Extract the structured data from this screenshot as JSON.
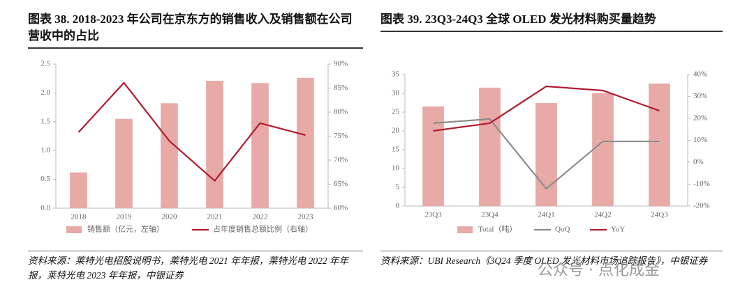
{
  "chart_data": [
    {
      "type": "combo",
      "title": "图表 38. 2018-2023 年公司在京东方的销售收入及销售额在公司营收中的占比",
      "categories": [
        "2018",
        "2019",
        "2020",
        "2021",
        "2022",
        "2023"
      ],
      "series": [
        {
          "name": "销售额（亿元，左轴）",
          "type": "bar",
          "color": "#e8aaa7",
          "values": [
            0.62,
            1.55,
            1.82,
            2.21,
            2.17,
            2.26
          ]
        },
        {
          "name": "占年度销售总额比例（右轴）",
          "type": "line",
          "axis": "y2",
          "color": "#b11a30",
          "values": [
            75.8,
            86.1,
            74,
            65.7,
            77.7,
            75.2
          ]
        }
      ],
      "ylim": [
        0,
        2.5
      ],
      "yticks": [
        {
          "value": 0,
          "label": "0.0"
        },
        {
          "value": 0.5,
          "label": "0.5"
        },
        {
          "value": 1,
          "label": "1.0"
        },
        {
          "value": 1.5,
          "label": "1.5"
        },
        {
          "value": 2,
          "label": "2.0"
        },
        {
          "value": 2.5,
          "label": "2.5"
        }
      ],
      "y2lim": [
        60,
        90
      ],
      "y2ticks": [
        {
          "value": 60,
          "label": "60%"
        },
        {
          "value": 65,
          "label": "65%"
        },
        {
          "value": 70,
          "label": "70%"
        },
        {
          "value": 75,
          "label": "75%"
        },
        {
          "value": 80,
          "label": "80%"
        },
        {
          "value": 85,
          "label": "85%"
        },
        {
          "value": 90,
          "label": "90%"
        }
      ],
      "grid": false,
      "source": "资料来源：莱特光电招股说明书，莱特光电 2021 年年报，莱特光电 2022 年年报，莱特光电 2023 年年报，中银证券"
    },
    {
      "type": "combo",
      "title": "图表 39. 23Q3-24Q3 全球 OLED 发光材料购买量趋势",
      "categories": [
        "23Q3",
        "23Q4",
        "24Q1",
        "24Q2",
        "24Q3"
      ],
      "series": [
        {
          "name": "Total（吨）",
          "type": "bar",
          "color": "#e8aaa7",
          "values": [
            26.5,
            31.5,
            27.4,
            30,
            32.6
          ]
        },
        {
          "name": "QoQ",
          "type": "line",
          "axis": "y2",
          "color": "#8c8c8c",
          "values": [
            17.8,
            19.7,
            -12.1,
            9.5,
            9.5
          ]
        },
        {
          "name": "YoY",
          "type": "line",
          "axis": "y2",
          "color": "#b11a30",
          "values": [
            14.3,
            17.8,
            34.6,
            32.7,
            23.5
          ]
        }
      ],
      "ylim": [
        0,
        35
      ],
      "yticks": [
        0,
        5,
        10,
        15,
        20,
        25,
        30,
        35
      ],
      "y2lim": [
        -20,
        40
      ],
      "y2ticks": [
        {
          "value": -20,
          "label": "-20%"
        },
        {
          "value": -10,
          "label": "-10%"
        },
        {
          "value": 0,
          "label": "0%"
        },
        {
          "value": 10,
          "label": "10%"
        },
        {
          "value": 20,
          "label": "20%"
        },
        {
          "value": 30,
          "label": "30%"
        },
        {
          "value": 40,
          "label": "40%"
        }
      ],
      "grid": false,
      "source": "资料来源：UBI Research《3Q24 季度 OLED 发光材料市场追踪报告》，中银证券"
    }
  ],
  "watermark": "公众号 · 点化成金"
}
